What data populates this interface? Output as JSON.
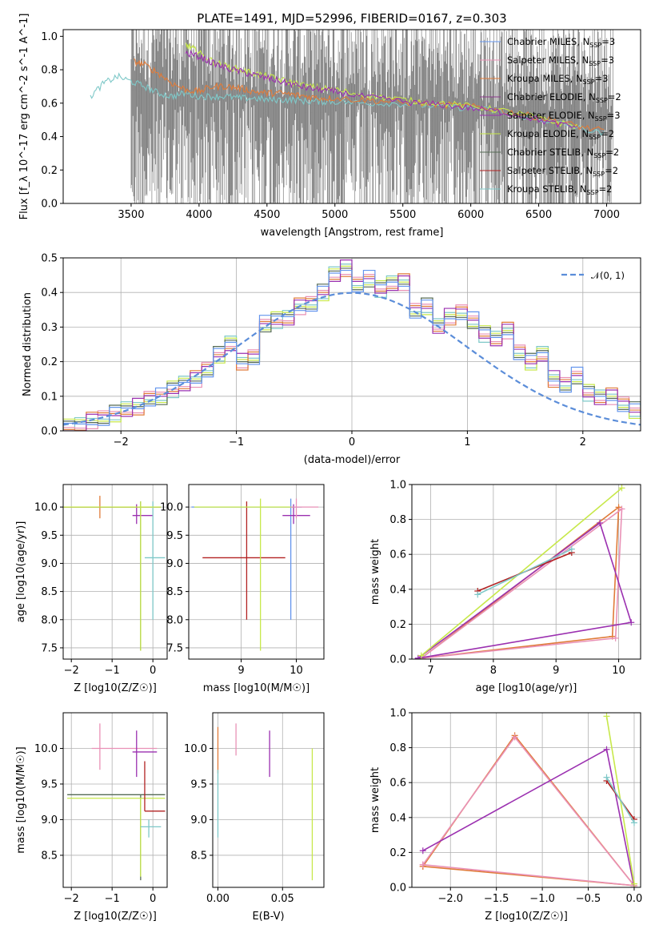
{
  "figure_title": "PLATE=1491, MJD=52996, FIBERID=0167, z=0.303",
  "colors": {
    "data": "#808080",
    "chabrier_miles": "#6495ed",
    "salpeter_miles": "#e991b6",
    "kroupa_miles": "#e07b39",
    "chabrier_elodie": "#8b3a8b",
    "salpeter_elodie": "#9b30b0",
    "kroupa_elodie": "#c7e84a",
    "chabrier_stelib": "#556b55",
    "salpeter_stelib": "#b22222",
    "kroupa_stelib": "#7ec8c8",
    "normal": "#5b8dd9"
  },
  "chart_data": [
    {
      "id": "spectrum",
      "type": "line",
      "title": "PLATE=1491, MJD=52996, FIBERID=0167, z=0.303",
      "xlabel": "wavelength [Angstrom, rest frame]",
      "ylabel": "Flux [f_λ 10^-17 erg cm^-2 s^-1 A^-1]",
      "xlim": [
        3000,
        7250
      ],
      "ylim": [
        0,
        1.04
      ],
      "xticks": [
        "3500",
        "4000",
        "4500",
        "5000",
        "5500",
        "6000",
        "6500",
        "7000"
      ],
      "yticks": [
        "0.0",
        "0.2",
        "0.4",
        "0.6",
        "0.8",
        "1.0"
      ],
      "legend_position": "right",
      "legend": [
        "Chabrier MILES, N_SSP=3",
        "Salpeter MILES, N_SSP=3",
        "Kroupa MILES, N_SSP=3",
        "Chabrier ELODIE, N_SSP=2",
        "Salpeter ELODIE, N_SSP=3",
        "Kroupa ELODIE, N_SSP=2",
        "Chabrier STELIB, N_SSP=2",
        "Salpeter STELIB, N_SSP=2",
        "Kroupa STELIB, N_SSP=2"
      ],
      "data_range": [
        3500,
        7050
      ],
      "series": [
        {
          "model": "Kroupa STELIB",
          "x": [
            3200,
            3300,
            3400,
            3500,
            3600,
            3700,
            3800,
            3900,
            4000,
            4100,
            4200,
            4300,
            4400,
            4500,
            4600,
            4700,
            4800,
            4900,
            5000,
            5200,
            5400,
            5600,
            5800,
            6000,
            6200,
            6400,
            6600,
            6800,
            7000
          ],
          "y": [
            0.64,
            0.72,
            0.76,
            0.73,
            0.7,
            0.66,
            0.64,
            0.66,
            0.64,
            0.64,
            0.64,
            0.63,
            0.63,
            0.62,
            0.62,
            0.62,
            0.61,
            0.61,
            0.61,
            0.6,
            0.6,
            0.59,
            0.58,
            0.57,
            0.55,
            0.52,
            0.49,
            0.45,
            0.41
          ]
        },
        {
          "model": "Kroupa MILES",
          "x": [
            3520,
            3600,
            3700,
            3800,
            3900,
            4000,
            4100,
            4200,
            4300,
            4400,
            4500,
            4600,
            4700,
            4800,
            4900,
            5000,
            5200,
            5400,
            5600,
            5800,
            6000,
            6200,
            6400,
            6600,
            6800,
            7000
          ],
          "y": [
            0.85,
            0.83,
            0.78,
            0.72,
            0.68,
            0.67,
            0.7,
            0.7,
            0.69,
            0.67,
            0.66,
            0.66,
            0.65,
            0.64,
            0.63,
            0.63,
            0.62,
            0.61,
            0.6,
            0.59,
            0.58,
            0.56,
            0.53,
            0.5,
            0.46,
            0.43
          ]
        },
        {
          "model": "Kroupa ELODIE",
          "x": [
            3900,
            3950,
            4000,
            4100,
            4200,
            4300,
            4400,
            4500,
            4600,
            4700,
            4800,
            4900,
            5000,
            5200,
            5400,
            5600,
            5800,
            6000,
            6200,
            6400,
            6600,
            6800
          ],
          "y": [
            0.95,
            0.93,
            0.9,
            0.85,
            0.82,
            0.8,
            0.78,
            0.76,
            0.74,
            0.72,
            0.7,
            0.69,
            0.68,
            0.65,
            0.63,
            0.61,
            0.6,
            0.58,
            0.56,
            0.53,
            0.49,
            0.46
          ]
        },
        {
          "model": "Salpeter ELODIE",
          "x": [
            3900,
            4000,
            4100,
            4200,
            4300,
            4400,
            4500,
            4600,
            4700,
            4800,
            4900,
            5000,
            5200,
            5400,
            5600,
            5800,
            6000,
            6200,
            6400,
            6600,
            6800
          ],
          "y": [
            0.9,
            0.88,
            0.84,
            0.81,
            0.79,
            0.77,
            0.75,
            0.73,
            0.71,
            0.69,
            0.68,
            0.67,
            0.64,
            0.62,
            0.6,
            0.59,
            0.57,
            0.55,
            0.52,
            0.48,
            0.45
          ]
        }
      ]
    },
    {
      "id": "residuals",
      "type": "histogram",
      "xlabel": "(data-model)/error",
      "ylabel": "Normed distribution",
      "xlim": [
        -2.5,
        2.5
      ],
      "ylim": [
        0,
        0.5
      ],
      "xticks": [
        "−2",
        "−1",
        "0",
        "1",
        "2"
      ],
      "yticks": [
        "0.0",
        "0.1",
        "0.2",
        "0.3",
        "0.4",
        "0.5"
      ],
      "legend": [
        "N(0,1)"
      ],
      "legend_position": "upper right",
      "bin_start": -2.5,
      "bin_width": 0.1,
      "values": [
        0.01,
        0.02,
        0.03,
        0.04,
        0.05,
        0.06,
        0.07,
        0.09,
        0.1,
        0.12,
        0.14,
        0.15,
        0.18,
        0.22,
        0.25,
        0.2,
        0.21,
        0.31,
        0.32,
        0.33,
        0.36,
        0.37,
        0.4,
        0.45,
        0.47,
        0.42,
        0.44,
        0.41,
        0.43,
        0.43,
        0.35,
        0.36,
        0.3,
        0.33,
        0.34,
        0.32,
        0.28,
        0.27,
        0.29,
        0.23,
        0.2,
        0.22,
        0.15,
        0.13,
        0.16,
        0.11,
        0.1,
        0.1,
        0.08,
        0.06,
        0.06
      ]
    },
    {
      "id": "z_age",
      "type": "errorbar",
      "xlabel": "Z [log10(Z/Z☉)]",
      "ylabel": "age [log10(age/yr)]",
      "xlim": [
        -2.2,
        0.35
      ],
      "ylim": [
        7.3,
        10.4
      ],
      "xticks": [
        "−2",
        "−1",
        "0"
      ],
      "yticks": [
        "7.5",
        "8.0",
        "8.5",
        "9.0",
        "9.5",
        "10.0"
      ],
      "points": [
        {
          "model": "Kroupa MILES",
          "x": -1.3,
          "y": 10.0,
          "xerr": [
            0.9,
            1.5
          ],
          "yerr": [
            0.2,
            0.2
          ]
        },
        {
          "model": "Chabrier STELIB",
          "x": -0.3,
          "y": 10.0,
          "xerr": [
            1.9,
            0.5
          ],
          "yerr": [
            2.55,
            0.1
          ]
        },
        {
          "model": "Salpeter ELODIE",
          "x": -0.4,
          "y": 9.85,
          "xerr": [
            0.1,
            0.4
          ],
          "yerr": [
            0.15,
            0.2
          ]
        },
        {
          "model": "Kroupa STELIB",
          "x": 0.0,
          "y": 9.1,
          "xerr": [
            0.2,
            0.3
          ],
          "yerr": [
            1.1,
            1.0
          ]
        },
        {
          "model": "Kroupa ELODIE",
          "x": -0.3,
          "y": 10.0,
          "xerr": [
            1.9,
            0.5
          ],
          "yerr": [
            2.55,
            0.1
          ]
        }
      ]
    },
    {
      "id": "mass_age",
      "type": "errorbar",
      "xlabel": "mass [log10(M/M☉)]",
      "ylabel": "",
      "xlim": [
        8.05,
        10.5
      ],
      "ylim": [
        7.3,
        10.4
      ],
      "xticks": [
        "9",
        "10"
      ],
      "yticks": [
        "7.5",
        "8.0",
        "8.5",
        "9.0",
        "9.5",
        "10.0"
      ],
      "points": [
        {
          "model": "Chabrier MILES",
          "x": 9.9,
          "y": 10.0,
          "xerr": [
            1.8,
            0.2
          ],
          "yerr": [
            2.0,
            0.15
          ]
        },
        {
          "model": "Salpeter STELIB",
          "x": 9.1,
          "y": 9.1,
          "xerr": [
            0.8,
            0.7
          ],
          "yerr": [
            1.1,
            1.0
          ]
        },
        {
          "model": "Kroupa ELODIE",
          "x": 9.35,
          "y": 10.0,
          "xerr": [
            1.2,
            0.6
          ],
          "yerr": [
            2.55,
            0.15
          ]
        },
        {
          "model": "Salpeter ELODIE",
          "x": 9.95,
          "y": 9.85,
          "xerr": [
            0.2,
            0.3
          ],
          "yerr": [
            0.15,
            0.2
          ]
        },
        {
          "model": "Salpeter MILES",
          "x": 10.0,
          "y": 10.0,
          "xerr": [
            0.1,
            0.4
          ],
          "yerr": [
            0.2,
            0.15
          ]
        }
      ]
    },
    {
      "id": "age_weight",
      "type": "line",
      "xlabel": "age [log10(age/yr)]",
      "ylabel": "mass weight",
      "xlim": [
        6.7,
        10.35
      ],
      "ylim": [
        0,
        1.0
      ],
      "xticks": [
        "7",
        "8",
        "9",
        "10"
      ],
      "yticks": [
        "0.0",
        "0.2",
        "0.4",
        "0.6",
        "0.8",
        "1.0"
      ],
      "series": [
        {
          "model": "Kroupa MILES",
          "x": [
            6.85,
            9.9,
            10.0,
            6.85
          ],
          "y": [
            0.005,
            0.13,
            0.87,
            0.005
          ]
        },
        {
          "model": "Salpeter MILES",
          "x": [
            6.85,
            9.95,
            10.05,
            6.85
          ],
          "y": [
            0.005,
            0.12,
            0.86,
            0.005
          ]
        },
        {
          "model": "Salpeter ELODIE",
          "x": [
            6.8,
            9.7,
            10.2,
            6.8
          ],
          "y": [
            0.005,
            0.78,
            0.21,
            0.005
          ]
        },
        {
          "model": "Kroupa ELODIE",
          "x": [
            6.85,
            10.05
          ],
          "y": [
            0.02,
            0.98
          ]
        },
        {
          "model": "Salpeter STELIB",
          "x": [
            7.75,
            9.25
          ],
          "y": [
            0.39,
            0.61
          ]
        },
        {
          "model": "Kroupa STELIB",
          "x": [
            7.75,
            9.25
          ],
          "y": [
            0.37,
            0.63
          ]
        }
      ]
    },
    {
      "id": "z_mass",
      "type": "errorbar",
      "xlabel": "Z [log10(Z/Z☉)]",
      "ylabel": "mass [log10(M/M☉)]",
      "xlim": [
        -2.2,
        0.35
      ],
      "ylim": [
        8.05,
        10.5
      ],
      "xticks": [
        "−2",
        "−1",
        "0"
      ],
      "yticks": [
        "8.5",
        "9.0",
        "9.5",
        "10.0"
      ],
      "points": [
        {
          "model": "Salpeter MILES",
          "x": -1.3,
          "y": 10.0,
          "xerr": [
            0.2,
            1.4
          ],
          "yerr": [
            0.3,
            0.35
          ]
        },
        {
          "model": "Chabrier STELIB",
          "x": -0.3,
          "y": 9.35,
          "xerr": [
            1.8,
            0.6
          ],
          "yerr": [
            1.2,
            0.0
          ]
        },
        {
          "model": "Kroupa ELODIE",
          "x": -0.3,
          "y": 9.3,
          "xerr": [
            1.8,
            0.6
          ],
          "yerr": [
            1.1,
            0.0
          ]
        },
        {
          "model": "Salpeter ELODIE",
          "x": -0.4,
          "y": 9.95,
          "xerr": [
            0.1,
            0.5
          ],
          "yerr": [
            0.35,
            0.3
          ]
        },
        {
          "model": "Salpeter STELIB",
          "x": -0.2,
          "y": 9.12,
          "xerr": [
            0.0,
            0.5
          ],
          "yerr": [
            0.0,
            0.7
          ]
        },
        {
          "model": "Kroupa STELIB",
          "x": -0.1,
          "y": 8.9,
          "xerr": [
            0.2,
            0.3
          ],
          "yerr": [
            0.15,
            0.1
          ]
        }
      ]
    },
    {
      "id": "ebv_mass",
      "type": "errorbar",
      "xlabel": "E(B-V)",
      "ylabel": "",
      "xlim": [
        -0.004,
        0.082
      ],
      "ylim": [
        8.05,
        10.5
      ],
      "xticks": [
        "0.00",
        "0.05"
      ],
      "yticks": [
        "8.5",
        "9.0",
        "9.5",
        "10.0"
      ],
      "points": [
        {
          "model": "Kroupa MILES",
          "x": 0.0,
          "y": 10.0,
          "xerr": [
            0,
            0
          ],
          "yerr": [
            0.35,
            0.3
          ]
        },
        {
          "model": "Kroupa STELIB",
          "x": 0.0,
          "y": 9.2,
          "xerr": [
            0,
            0
          ],
          "yerr": [
            0.45,
            0.5
          ]
        },
        {
          "model": "Salpeter MILES",
          "x": 0.014,
          "y": 10.1,
          "xerr": [
            0,
            0
          ],
          "yerr": [
            0.2,
            0.25
          ]
        },
        {
          "model": "Salpeter ELODIE",
          "x": 0.04,
          "y": 9.95,
          "xerr": [
            0,
            0
          ],
          "yerr": [
            0.35,
            0.3
          ]
        },
        {
          "model": "Kroupa ELODIE",
          "x": 0.073,
          "y": 9.1,
          "xerr": [
            0,
            0
          ],
          "yerr": [
            0.95,
            0.9
          ]
        }
      ]
    },
    {
      "id": "z_weight",
      "type": "line",
      "xlabel": "Z [log10(Z/Z☉)]",
      "ylabel": "mass weight",
      "xlim": [
        -2.42,
        0.07
      ],
      "ylim": [
        0,
        1.0
      ],
      "xticks": [
        "−2.0",
        "−1.5",
        "−1.0",
        "−0.5",
        "0.0"
      ],
      "yticks": [
        "0.0",
        "0.2",
        "0.4",
        "0.6",
        "0.8",
        "1.0"
      ],
      "series": [
        {
          "model": "Kroupa MILES",
          "x": [
            -2.3,
            -1.3,
            0.0,
            -2.3
          ],
          "y": [
            0.12,
            0.87,
            0.01,
            0.12
          ]
        },
        {
          "model": "Salpeter MILES",
          "x": [
            -2.3,
            -1.3,
            0.0,
            -2.3
          ],
          "y": [
            0.13,
            0.86,
            0.01,
            0.13
          ]
        },
        {
          "model": "Salpeter ELODIE",
          "x": [
            -2.3,
            -0.3,
            0.0
          ],
          "y": [
            0.21,
            0.79,
            0.0
          ]
        },
        {
          "model": "Kroupa ELODIE",
          "x": [
            -0.3,
            0.0
          ],
          "y": [
            0.98,
            0.02
          ]
        },
        {
          "model": "Salpeter STELIB",
          "x": [
            -0.3,
            0.0
          ],
          "y": [
            0.61,
            0.39
          ]
        },
        {
          "model": "Kroupa STELIB",
          "x": [
            -0.3,
            0.0
          ],
          "y": [
            0.63,
            0.37
          ]
        }
      ]
    }
  ]
}
